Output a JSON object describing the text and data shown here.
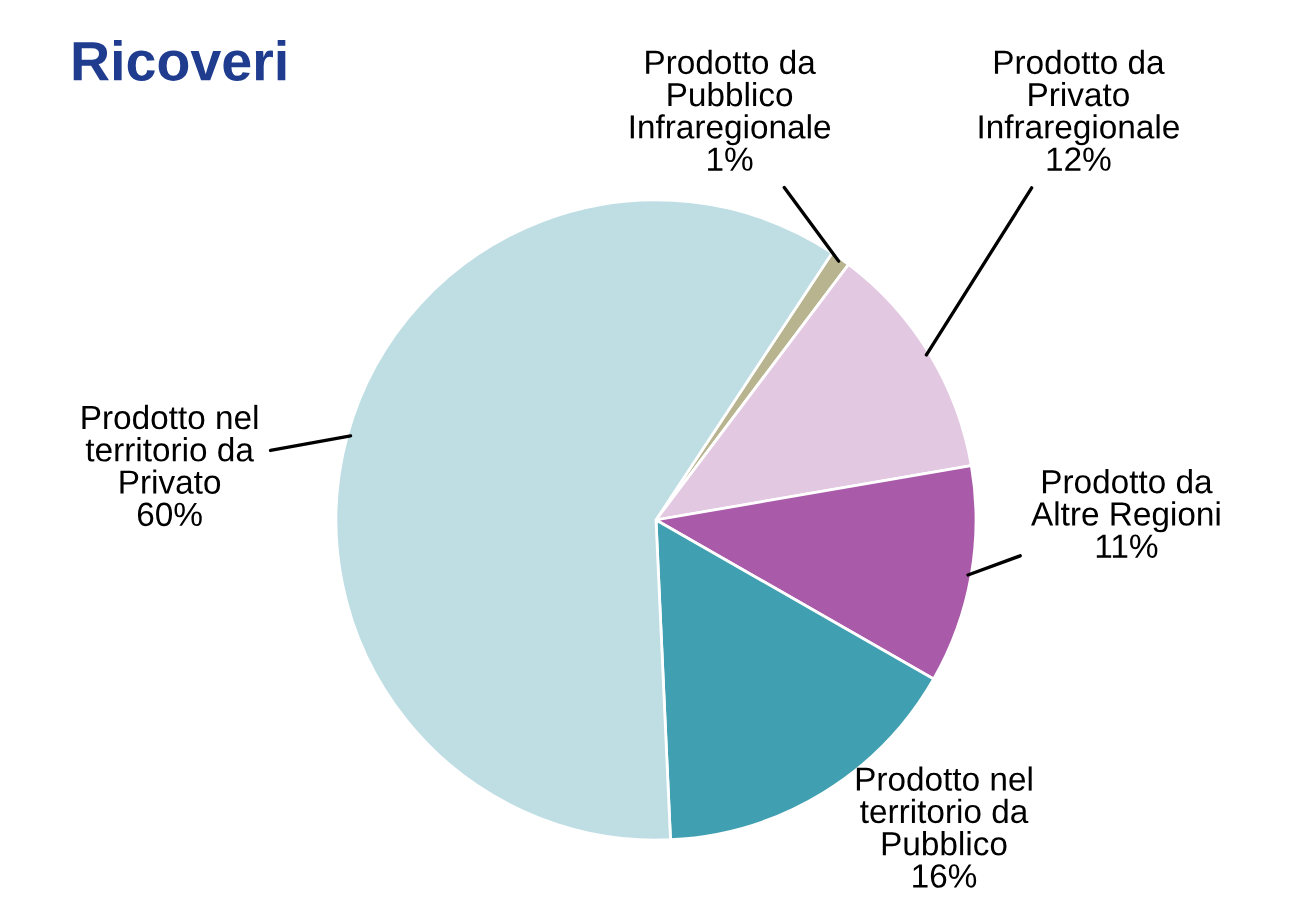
{
  "chart_data": {
    "type": "pie",
    "title": "Ricoveri",
    "categories": [
      "Prodotto da\nPubblico\nInfraregionale",
      "Prodotto da\nPrivato\nInfraregionale",
      "Prodotto da\nAltre Regioni",
      "Prodotto nel\nterritorio da\nPubblico",
      "Prodotto nel\nterritorio da\nPrivato"
    ],
    "values": [
      1,
      12,
      11,
      16,
      60
    ],
    "colors": [
      "#b8b48f",
      "#e3c8e2",
      "#a95ba9",
      "#409fb0",
      "#bfdee4"
    ],
    "value_labels": [
      "1%",
      "12%",
      "11%",
      "16%",
      "60%"
    ]
  }
}
